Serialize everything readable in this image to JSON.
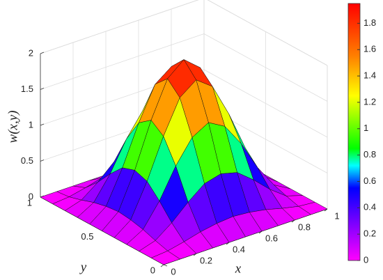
{
  "chart_data": {
    "type": "surface",
    "zlabel": "w(x,y)",
    "xlabel": "x",
    "ylabel": "y",
    "x": [
      0,
      0.1,
      0.2,
      0.3,
      0.4,
      0.5,
      0.6,
      0.7,
      0.8,
      0.9,
      1
    ],
    "y": [
      0,
      0.1,
      0.2,
      0.3,
      0.4,
      0.5,
      0.6,
      0.7,
      0.8,
      0.9,
      1
    ],
    "z": [
      [
        0,
        0,
        0,
        0,
        0,
        0,
        0,
        0,
        0,
        0,
        0
      ],
      [
        0,
        0.02,
        0.07,
        0.13,
        0.17,
        0.19,
        0.17,
        0.13,
        0.07,
        0.02,
        0
      ],
      [
        0,
        0.07,
        0.24,
        0.45,
        0.63,
        0.69,
        0.63,
        0.45,
        0.24,
        0.07,
        0
      ],
      [
        0,
        0.13,
        0.45,
        0.86,
        1.18,
        1.31,
        1.18,
        0.86,
        0.45,
        0.13,
        0
      ],
      [
        0,
        0.17,
        0.63,
        1.18,
        1.64,
        1.81,
        1.64,
        1.18,
        0.63,
        0.17,
        0
      ],
      [
        0,
        0.19,
        0.69,
        1.31,
        1.81,
        2,
        1.81,
        1.31,
        0.69,
        0.19,
        0
      ],
      [
        0,
        0.17,
        0.63,
        1.18,
        1.64,
        1.81,
        1.64,
        1.18,
        0.63,
        0.17,
        0
      ],
      [
        0,
        0.13,
        0.45,
        0.86,
        1.18,
        1.31,
        1.18,
        0.86,
        0.45,
        0.13,
        0
      ],
      [
        0,
        0.07,
        0.24,
        0.45,
        0.63,
        0.69,
        0.63,
        0.45,
        0.24,
        0.07,
        0
      ],
      [
        0,
        0.02,
        0.07,
        0.13,
        0.17,
        0.19,
        0.17,
        0.13,
        0.07,
        0.02,
        0
      ],
      [
        0,
        0,
        0,
        0,
        0,
        0,
        0,
        0,
        0,
        0,
        0
      ]
    ],
    "xlim": [
      0,
      1
    ],
    "ylim": [
      0,
      1
    ],
    "zlim": [
      0,
      2
    ],
    "xticks": [
      0,
      0.2,
      0.4,
      0.6,
      0.8,
      1
    ],
    "yticks": [
      0,
      0.5,
      1
    ],
    "zticks": [
      0,
      0.5,
      1,
      1.5,
      2
    ],
    "grid": true,
    "clim": [
      0,
      1.95
    ],
    "colorbar_ticks": [
      0,
      0.2,
      0.4,
      0.6,
      0.8,
      1,
      1.2,
      1.4,
      1.6,
      1.8
    ],
    "colormap": [
      [
        0,
        "#ff00ff"
      ],
      [
        0.55,
        "#0000ff"
      ],
      [
        0.72,
        "#00ffff"
      ],
      [
        0.85,
        "#00ff00"
      ],
      [
        1.25,
        "#ffff00"
      ],
      [
        1.55,
        "#ff8000"
      ],
      [
        1.95,
        "#ff0000"
      ]
    ]
  }
}
